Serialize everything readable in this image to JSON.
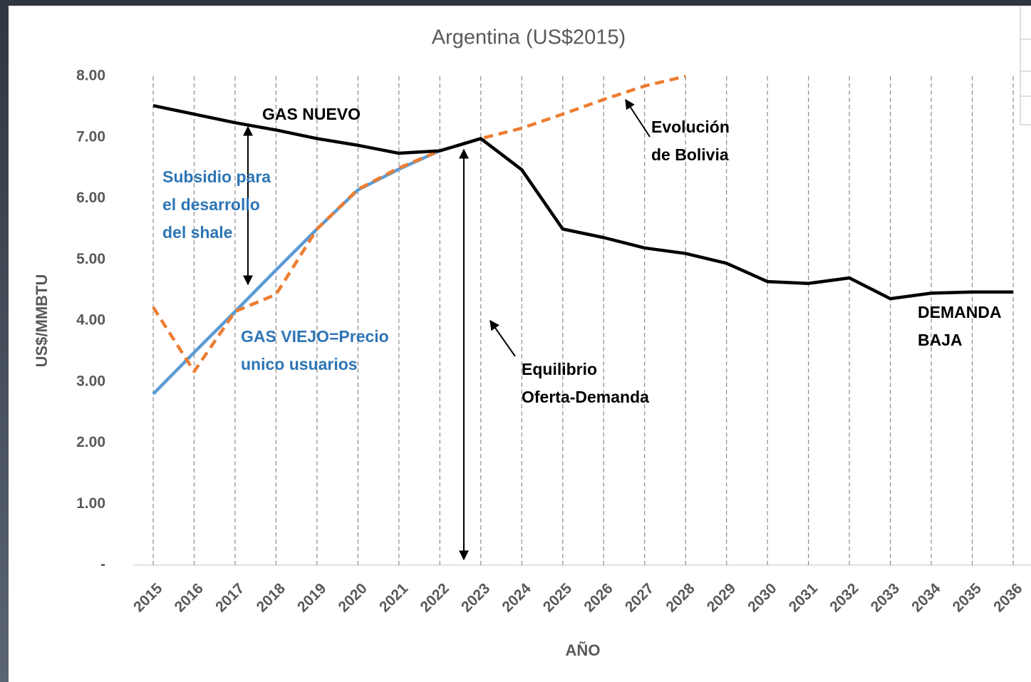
{
  "chart_data": {
    "type": "line",
    "title": "Argentina  (US$2015)",
    "x_label": "AÑO",
    "y_label": "US$/MMBTU",
    "categories": [
      "2015",
      "2016",
      "2017",
      "2018",
      "2019",
      "2020",
      "2021",
      "2022",
      "2023",
      "2024",
      "2025",
      "2026",
      "2027",
      "2028",
      "2029",
      "2030",
      "2031",
      "2032",
      "2033",
      "2034",
      "2035",
      "2036"
    ],
    "ylim": [
      0,
      8
    ],
    "yticks": [
      {
        "value": 0,
        "label": "-"
      },
      {
        "value": 1,
        "label": "1.00"
      },
      {
        "value": 2,
        "label": "2.00"
      },
      {
        "value": 3,
        "label": "3.00"
      },
      {
        "value": 4,
        "label": "4.00"
      },
      {
        "value": 5,
        "label": "5.00"
      },
      {
        "value": 6,
        "label": "6.00"
      },
      {
        "value": 7,
        "label": "7.00"
      },
      {
        "value": 8,
        "label": "8.00"
      }
    ],
    "x_grid": true,
    "series": [
      {
        "color": "#000000",
        "dashed": false,
        "values": [
          7.52,
          7.38,
          7.24,
          7.12,
          6.98,
          6.87,
          6.74,
          6.78,
          6.98,
          6.47,
          5.5,
          5.36,
          5.19,
          5.1,
          4.94,
          4.64,
          4.61,
          4.7,
          4.36,
          4.45,
          4.47,
          4.47
        ]
      },
      {
        "color": "#ed7d31",
        "dashed": true,
        "values": [
          4.22,
          3.17,
          4.15,
          4.43,
          5.5,
          6.15,
          6.5,
          6.78,
          6.98,
          7.15,
          7.38,
          7.62,
          7.84,
          8.0,
          null,
          null,
          null,
          null,
          null,
          null,
          null,
          null
        ]
      },
      {
        "color": "#5b9bd5",
        "dashed": false,
        "values": [
          2.8,
          3.48,
          4.15,
          4.83,
          5.5,
          6.14,
          6.48,
          6.78,
          null,
          null,
          null,
          null,
          null,
          null,
          null,
          null,
          null,
          null,
          null,
          null,
          null,
          null
        ]
      }
    ],
    "annotations": [
      {
        "lines": [
          "GAS NUEVO"
        ],
        "color": "#000000"
      },
      {
        "lines": [
          "Subsidio para",
          "el desarrollo",
          "del shale"
        ],
        "color": "#2e75b6"
      },
      {
        "lines": [
          "GAS VIEJO=Precio",
          "unico usuarios"
        ],
        "color": "#2e75b6"
      },
      {
        "lines": [
          "Evolución",
          "de Bolivia"
        ],
        "color": "#000000"
      },
      {
        "lines": [
          "Equilibrio",
          "Oferta-Demanda"
        ],
        "color": "#000000"
      },
      {
        "lines": [
          "DEMANDA",
          "BAJA"
        ],
        "color": "#000000"
      }
    ]
  }
}
